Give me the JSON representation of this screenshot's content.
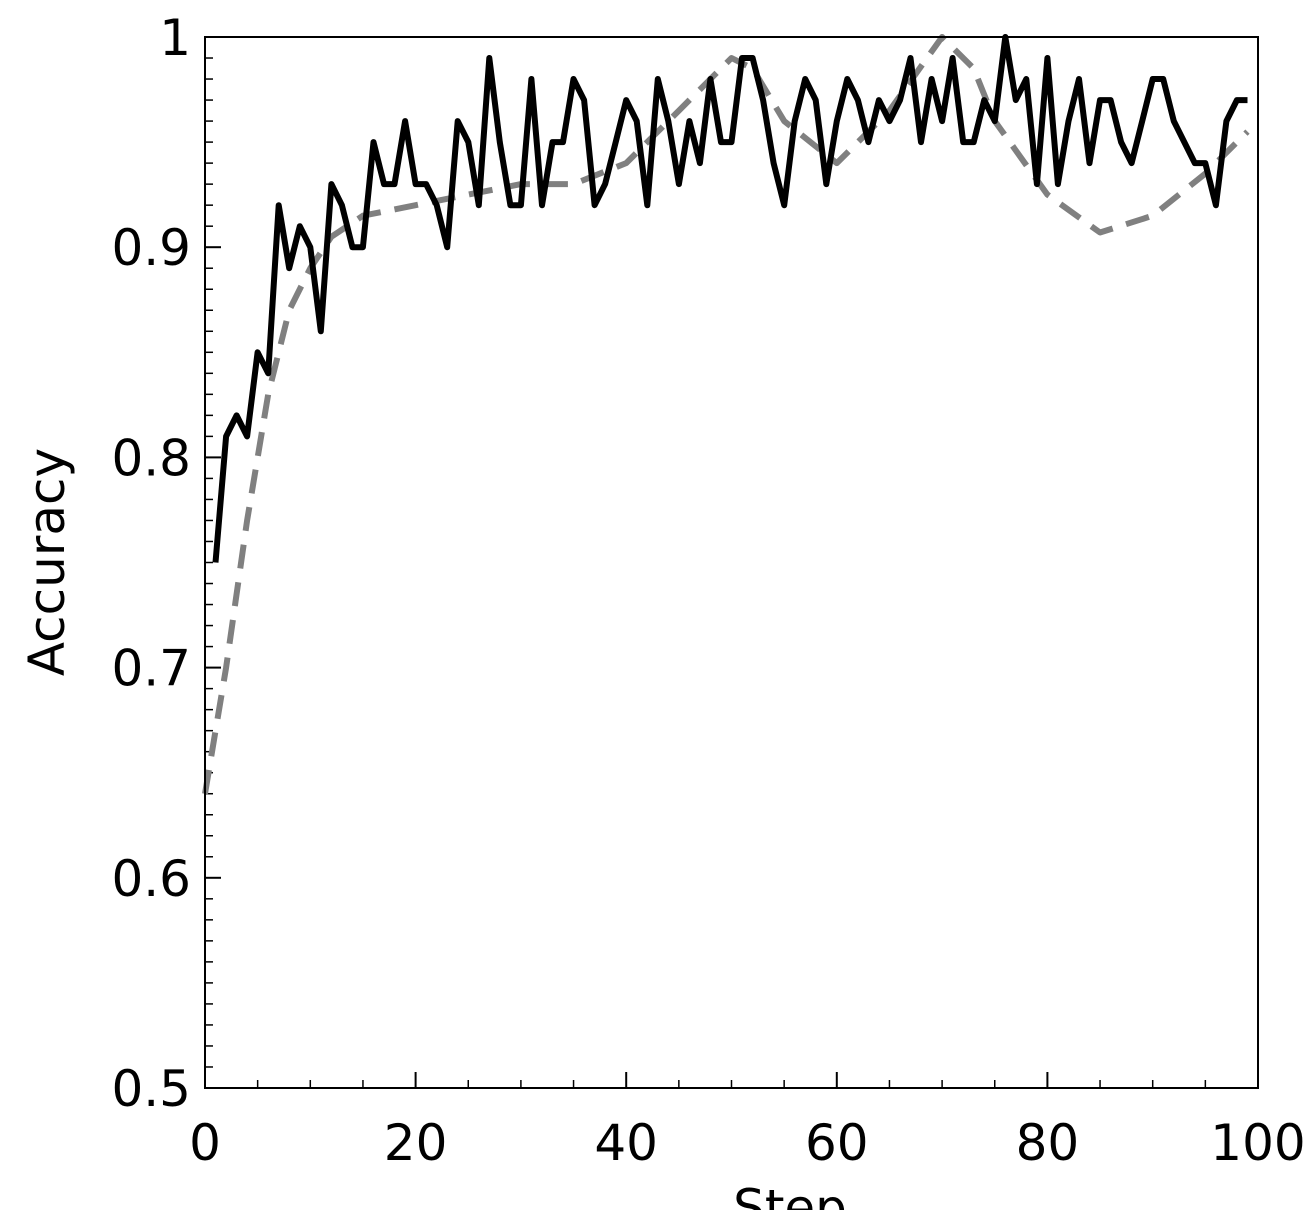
{
  "chart_data": {
    "type": "line",
    "xlabel": "Step",
    "ylabel": "Accuracy",
    "xlim": [
      0,
      100
    ],
    "xticks": [
      0,
      20,
      40,
      60,
      80,
      100
    ],
    "ylim": [
      0.5,
      1
    ],
    "yticks": [
      0.5,
      0.6,
      0.7,
      0.8,
      0.9,
      1
    ],
    "series": [
      {
        "color": "#000000",
        "dash": "solid",
        "x": [
          1,
          2,
          3,
          4,
          5,
          6,
          7,
          8,
          9,
          10,
          11,
          12,
          13,
          14,
          15,
          16,
          17,
          18,
          19,
          20,
          21,
          22,
          23,
          24,
          25,
          26,
          27,
          28,
          29,
          30,
          31,
          32,
          33,
          34,
          35,
          36,
          37,
          38,
          39,
          40,
          41,
          42,
          43,
          44,
          45,
          46,
          47,
          48,
          49,
          50,
          51,
          52,
          53,
          54,
          55,
          56,
          57,
          58,
          59,
          60,
          61,
          62,
          63,
          64,
          65,
          66,
          67,
          68,
          69,
          70,
          71,
          72,
          73,
          74,
          75,
          76,
          77,
          78,
          79,
          80,
          81,
          82,
          83,
          84,
          85,
          86,
          87,
          88,
          89,
          90,
          91,
          92,
          93,
          94,
          95,
          96,
          97,
          98,
          99
        ],
        "values": [
          0.75,
          0.81,
          0.82,
          0.81,
          0.85,
          0.84,
          0.92,
          0.89,
          0.91,
          0.9,
          0.86,
          0.93,
          0.92,
          0.9,
          0.9,
          0.95,
          0.93,
          0.93,
          0.96,
          0.93,
          0.93,
          0.92,
          0.9,
          0.96,
          0.95,
          0.92,
          0.99,
          0.95,
          0.92,
          0.92,
          0.98,
          0.92,
          0.95,
          0.95,
          0.98,
          0.97,
          0.92,
          0.93,
          0.95,
          0.97,
          0.96,
          0.92,
          0.98,
          0.96,
          0.93,
          0.96,
          0.94,
          0.98,
          0.95,
          0.95,
          0.99,
          0.99,
          0.97,
          0.94,
          0.92,
          0.96,
          0.98,
          0.97,
          0.93,
          0.96,
          0.98,
          0.97,
          0.95,
          0.97,
          0.96,
          0.97,
          0.99,
          0.95,
          0.98,
          0.96,
          0.99,
          0.95,
          0.95,
          0.97,
          0.96,
          1.0,
          0.97,
          0.98,
          0.93,
          0.99,
          0.93,
          0.96,
          0.98,
          0.94,
          0.97,
          0.97,
          0.95,
          0.94,
          0.96,
          0.98,
          0.98,
          0.96,
          0.95,
          0.94,
          0.94,
          0.92,
          0.96,
          0.97,
          0.97
        ]
      },
      {
        "color": "#808080",
        "dash": "dashed",
        "x": [
          0,
          2,
          4,
          6,
          8,
          10,
          12,
          15,
          20,
          25,
          30,
          35,
          40,
          45,
          50,
          52,
          55,
          60,
          65,
          70,
          73,
          75,
          80,
          85,
          90,
          95,
          99
        ],
        "values": [
          0.64,
          0.7,
          0.77,
          0.83,
          0.87,
          0.89,
          0.905,
          0.915,
          0.92,
          0.925,
          0.93,
          0.93,
          0.94,
          0.965,
          0.99,
          0.985,
          0.96,
          0.94,
          0.965,
          1.0,
          0.985,
          0.96,
          0.925,
          0.907,
          0.915,
          0.935,
          0.955
        ]
      }
    ]
  }
}
